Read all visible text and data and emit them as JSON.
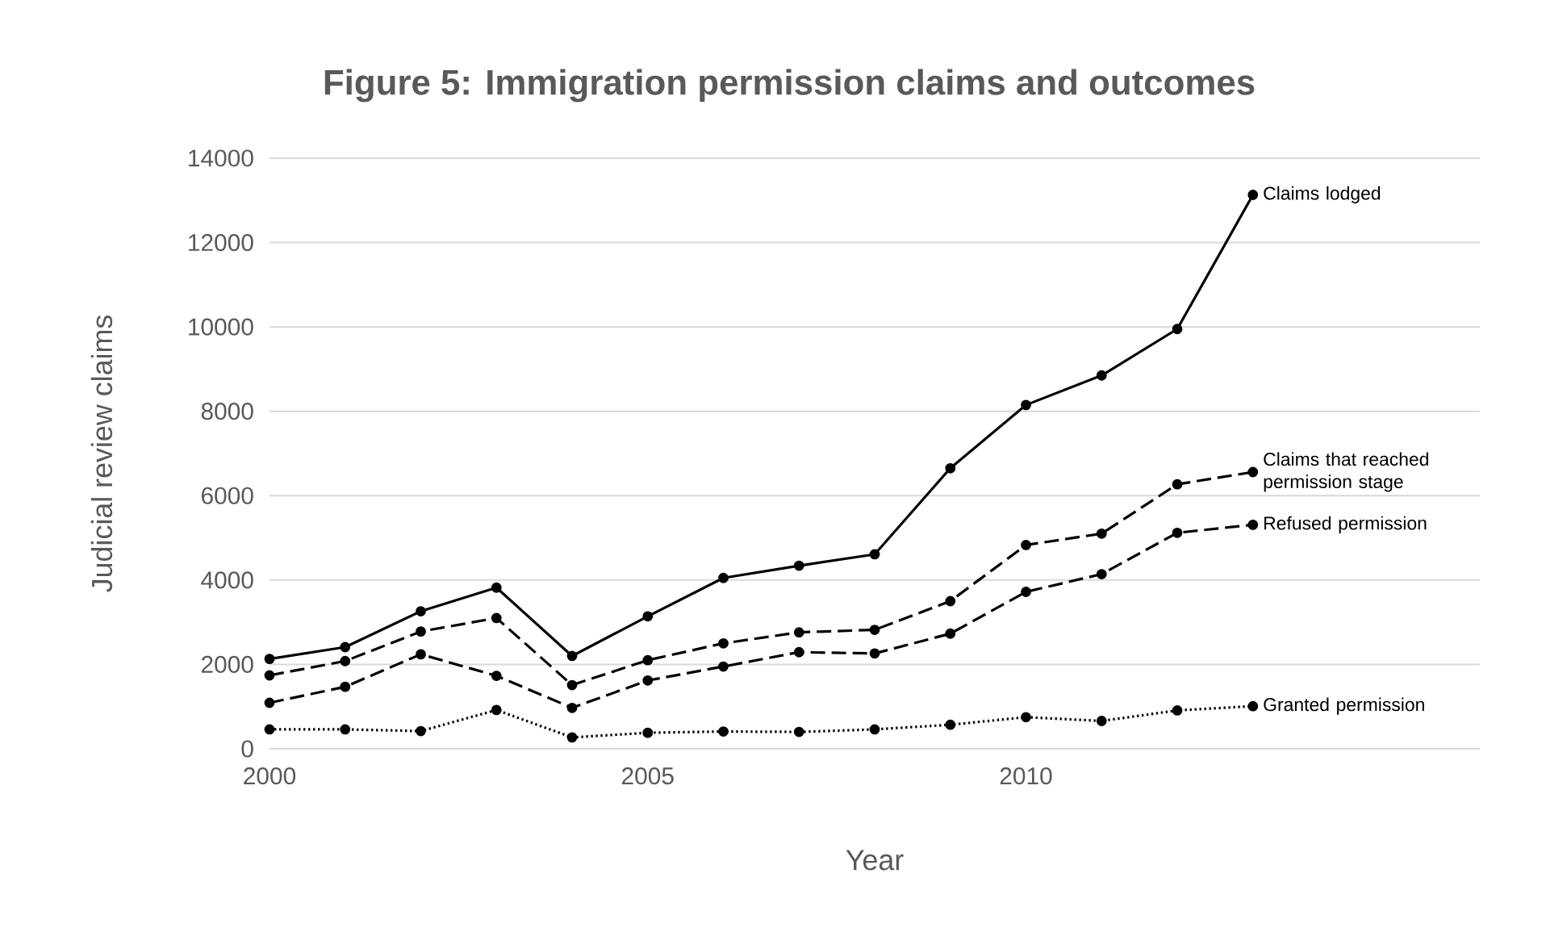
{
  "chart_data": {
    "type": "line",
    "title": "Figure 5: Immigration permission claims and outcomes",
    "xlabel": "Year",
    "ylabel": "Judicial review claims",
    "x": [
      2000,
      2001,
      2002,
      2003,
      2004,
      2005,
      2006,
      2007,
      2008,
      2009,
      2010,
      2011,
      2012,
      2013
    ],
    "series": [
      {
        "name": "Claims lodged",
        "color": "#000000",
        "line_style": "solid",
        "values": [
          2130,
          2410,
          3260,
          3820,
          2200,
          3140,
          4050,
          4340,
          4610,
          6650,
          8150,
          8850,
          9950,
          13130
        ]
      },
      {
        "name": "Claims that reached permission stage",
        "color": "#000000",
        "line_style": "dashed",
        "values": [
          1740,
          2080,
          2780,
          3100,
          1510,
          2100,
          2500,
          2760,
          2820,
          3500,
          4830,
          5100,
          6270,
          6560
        ]
      },
      {
        "name": "Refused permission",
        "color": "#000000",
        "line_style": "dashed",
        "values": [
          1090,
          1470,
          2240,
          1730,
          970,
          1620,
          1950,
          2290,
          2260,
          2730,
          3720,
          4140,
          5120,
          5310
        ]
      },
      {
        "name": "Granted permission",
        "color": "#000000",
        "line_style": "dotted",
        "values": [
          460,
          460,
          420,
          920,
          270,
          380,
          410,
          400,
          460,
          570,
          750,
          660,
          910,
          1010
        ]
      }
    ],
    "xlim": [
      2000,
      2016
    ],
    "ylim": [
      0,
      14000
    ],
    "xticks": [
      2000,
      2005,
      2010
    ],
    "yticks": [
      0,
      2000,
      4000,
      6000,
      8000,
      10000,
      12000,
      14000
    ],
    "grid": "y",
    "legend": false,
    "marker": "circle"
  }
}
